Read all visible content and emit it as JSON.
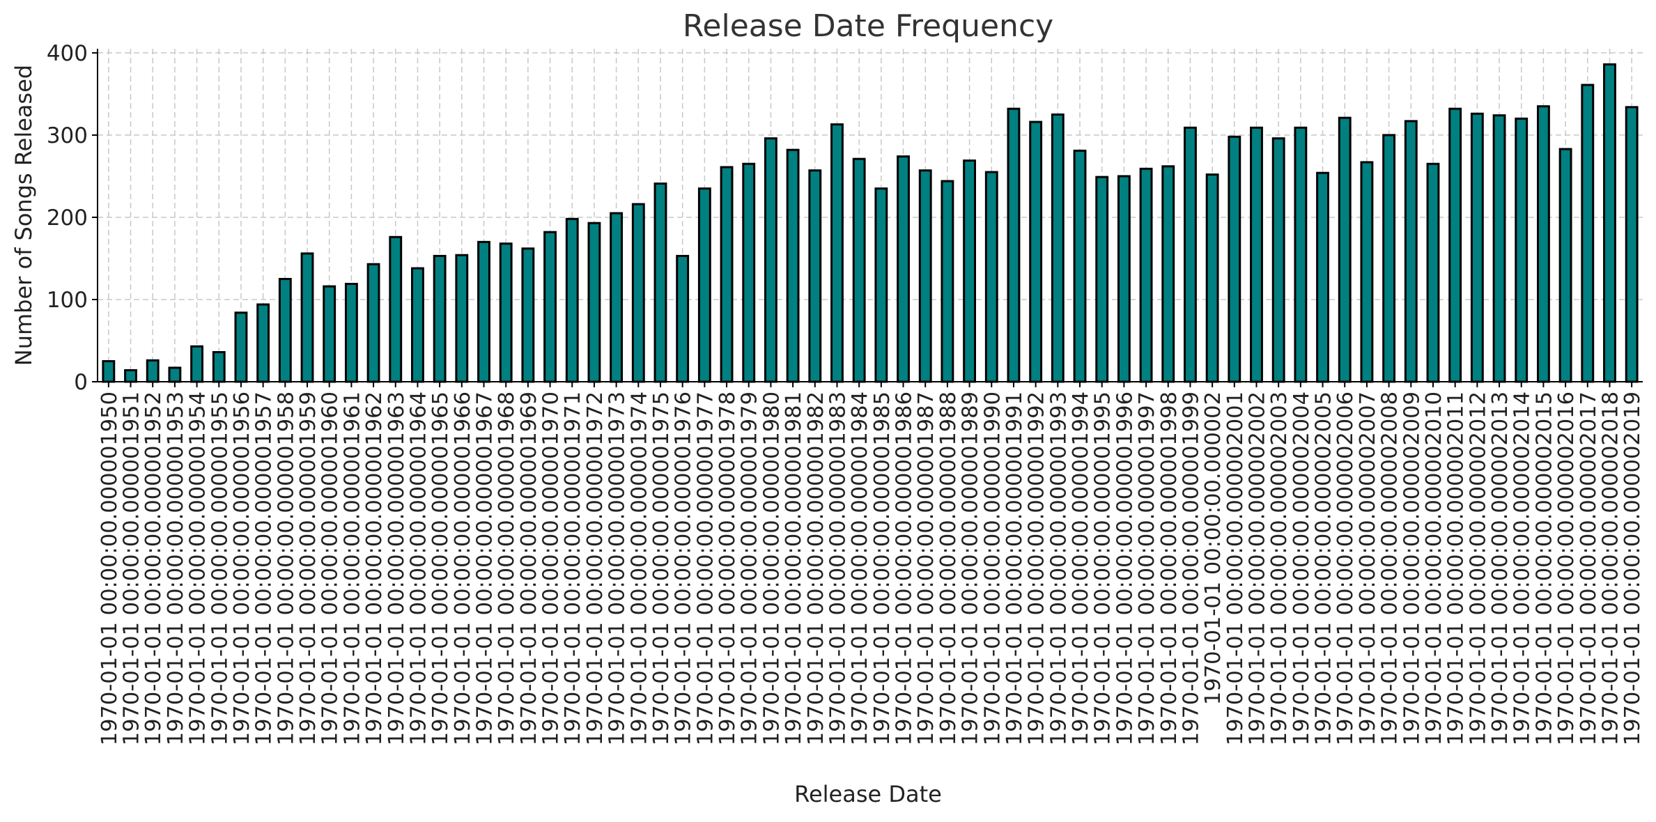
{
  "chart_data": {
    "type": "bar",
    "title": "Release Date Frequency",
    "xlabel": "Release Date",
    "ylabel": "Number of Songs Released",
    "ylim": [
      0,
      405
    ],
    "yticks": [
      0,
      100,
      200,
      300,
      400
    ],
    "grid": true,
    "legend": "none",
    "bar_color": "#008080",
    "categories": [
      "1970-01-01 00:00:00.000001950",
      "1970-01-01 00:00:00.000001951",
      "1970-01-01 00:00:00.000001952",
      "1970-01-01 00:00:00.000001953",
      "1970-01-01 00:00:00.000001954",
      "1970-01-01 00:00:00.000001955",
      "1970-01-01 00:00:00.000001956",
      "1970-01-01 00:00:00.000001957",
      "1970-01-01 00:00:00.000001958",
      "1970-01-01 00:00:00.000001959",
      "1970-01-01 00:00:00.000001960",
      "1970-01-01 00:00:00.000001961",
      "1970-01-01 00:00:00.000001962",
      "1970-01-01 00:00:00.000001963",
      "1970-01-01 00:00:00.000001964",
      "1970-01-01 00:00:00.000001965",
      "1970-01-01 00:00:00.000001966",
      "1970-01-01 00:00:00.000001967",
      "1970-01-01 00:00:00.000001968",
      "1970-01-01 00:00:00.000001969",
      "1970-01-01 00:00:00.000001970",
      "1970-01-01 00:00:00.000001971",
      "1970-01-01 00:00:00.000001972",
      "1970-01-01 00:00:00.000001973",
      "1970-01-01 00:00:00.000001974",
      "1970-01-01 00:00:00.000001975",
      "1970-01-01 00:00:00.000001976",
      "1970-01-01 00:00:00.000001977",
      "1970-01-01 00:00:00.000001978",
      "1970-01-01 00:00:00.000001979",
      "1970-01-01 00:00:00.000001980",
      "1970-01-01 00:00:00.000001981",
      "1970-01-01 00:00:00.000001982",
      "1970-01-01 00:00:00.000001983",
      "1970-01-01 00:00:00.000001984",
      "1970-01-01 00:00:00.000001985",
      "1970-01-01 00:00:00.000001986",
      "1970-01-01 00:00:00.000001987",
      "1970-01-01 00:00:00.000001988",
      "1970-01-01 00:00:00.000001989",
      "1970-01-01 00:00:00.000001990",
      "1970-01-01 00:00:00.000001991",
      "1970-01-01 00:00:00.000001992",
      "1970-01-01 00:00:00.000001993",
      "1970-01-01 00:00:00.000001994",
      "1970-01-01 00:00:00.000001995",
      "1970-01-01 00:00:00.000001996",
      "1970-01-01 00:00:00.000001997",
      "1970-01-01 00:00:00.000001998",
      "1970-01-01 00:00:00.000001999",
      "1970-01-01 00:00:00.000002",
      "1970-01-01 00:00:00.000002001",
      "1970-01-01 00:00:00.000002002",
      "1970-01-01 00:00:00.000002003",
      "1970-01-01 00:00:00.000002004",
      "1970-01-01 00:00:00.000002005",
      "1970-01-01 00:00:00.000002006",
      "1970-01-01 00:00:00.000002007",
      "1970-01-01 00:00:00.000002008",
      "1970-01-01 00:00:00.000002009",
      "1970-01-01 00:00:00.000002010",
      "1970-01-01 00:00:00.000002011",
      "1970-01-01 00:00:00.000002012",
      "1970-01-01 00:00:00.000002013",
      "1970-01-01 00:00:00.000002014",
      "1970-01-01 00:00:00.000002015",
      "1970-01-01 00:00:00.000002016",
      "1970-01-01 00:00:00.000002017",
      "1970-01-01 00:00:00.000002018",
      "1970-01-01 00:00:00.000002019"
    ],
    "values": [
      25,
      14,
      26,
      17,
      43,
      36,
      84,
      94,
      125,
      156,
      116,
      119,
      143,
      176,
      138,
      153,
      154,
      170,
      168,
      162,
      182,
      198,
      193,
      205,
      216,
      241,
      153,
      235,
      261,
      265,
      296,
      282,
      257,
      313,
      271,
      235,
      274,
      257,
      244,
      269,
      255,
      332,
      316,
      325,
      281,
      249,
      250,
      259,
      262,
      309,
      252,
      298,
      309,
      296,
      309,
      254,
      321,
      267,
      300,
      317,
      265,
      332,
      326,
      324,
      320,
      335,
      283,
      361,
      386,
      334
    ]
  }
}
